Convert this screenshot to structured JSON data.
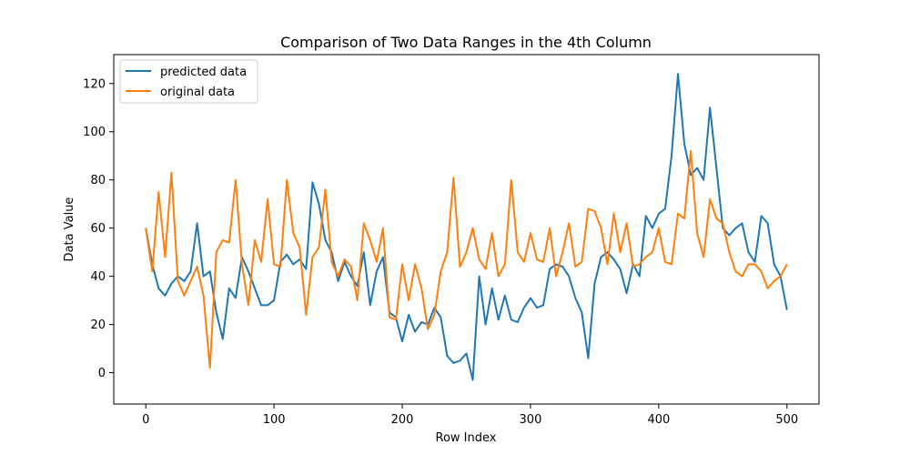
{
  "chart_data": {
    "type": "line",
    "title": "Comparison of Two Data Ranges in the 4th Column",
    "xlabel": "Row Index",
    "ylabel": "Data Value",
    "xlim": [
      -25,
      525
    ],
    "ylim": [
      -13,
      132
    ],
    "xticks": [
      0,
      100,
      200,
      300,
      400,
      500
    ],
    "yticks": [
      0,
      20,
      40,
      60,
      80,
      100,
      120
    ],
    "grid": false,
    "legend_position": "top-left",
    "series": [
      {
        "name": "predicted data",
        "color": "#1f77b4",
        "x": [
          0,
          5,
          10,
          15,
          20,
          25,
          30,
          35,
          40,
          45,
          50,
          55,
          60,
          65,
          70,
          75,
          80,
          85,
          90,
          95,
          100,
          105,
          110,
          115,
          120,
          125,
          130,
          135,
          140,
          145,
          150,
          155,
          160,
          165,
          170,
          175,
          180,
          185,
          190,
          195,
          200,
          205,
          210,
          215,
          220,
          225,
          230,
          235,
          240,
          245,
          250,
          255,
          260,
          265,
          270,
          275,
          280,
          285,
          290,
          295,
          300,
          305,
          310,
          315,
          320,
          325,
          330,
          335,
          340,
          345,
          350,
          355,
          360,
          365,
          370,
          375,
          380,
          385,
          390,
          395,
          400,
          405,
          410,
          415,
          420,
          425,
          430,
          435,
          440,
          445,
          450,
          455,
          460,
          465,
          470,
          475,
          480,
          485,
          490,
          495,
          500
        ],
        "y": [
          60,
          45,
          35,
          32,
          37,
          40,
          38,
          42,
          62,
          40,
          42,
          25,
          14,
          35,
          31,
          48,
          42,
          35,
          28,
          28,
          30,
          46,
          49,
          45,
          47,
          43,
          79,
          70,
          55,
          50,
          38,
          46,
          40,
          36,
          50,
          28,
          42,
          48,
          25,
          23,
          13,
          24,
          17,
          21,
          20,
          27,
          23,
          7,
          4,
          5,
          8,
          -3,
          40,
          20,
          35,
          22,
          32,
          22,
          21,
          27,
          31,
          27,
          28,
          43,
          45,
          44,
          40,
          31,
          25,
          6,
          37,
          48,
          50,
          47,
          43,
          33,
          45,
          40,
          65,
          60,
          66,
          68,
          90,
          124,
          95,
          82,
          85,
          80,
          110,
          85,
          60,
          57,
          60,
          62,
          50,
          46,
          65,
          62,
          45,
          40,
          26
        ]
      },
      {
        "name": "original data",
        "color": "#ff7f0e",
        "x": [
          0,
          5,
          10,
          15,
          20,
          25,
          30,
          35,
          40,
          45,
          50,
          55,
          60,
          65,
          70,
          75,
          80,
          85,
          90,
          95,
          100,
          105,
          110,
          115,
          120,
          125,
          130,
          135,
          140,
          145,
          150,
          155,
          160,
          165,
          170,
          175,
          180,
          185,
          190,
          195,
          200,
          205,
          210,
          215,
          220,
          225,
          230,
          235,
          240,
          245,
          250,
          255,
          260,
          265,
          270,
          275,
          280,
          285,
          290,
          295,
          300,
          305,
          310,
          315,
          320,
          325,
          330,
          335,
          340,
          345,
          350,
          355,
          360,
          365,
          370,
          375,
          380,
          385,
          390,
          395,
          400,
          405,
          410,
          415,
          420,
          425,
          430,
          435,
          440,
          445,
          450,
          455,
          460,
          465,
          470,
          475,
          480,
          485,
          490,
          495,
          500
        ],
        "y": [
          60,
          42,
          75,
          48,
          83,
          38,
          32,
          38,
          44,
          32,
          2,
          50,
          55,
          54,
          80,
          45,
          28,
          55,
          46,
          72,
          45,
          44,
          80,
          58,
          52,
          24,
          48,
          52,
          76,
          46,
          40,
          47,
          44,
          30,
          62,
          55,
          46,
          60,
          23,
          22,
          45,
          30,
          45,
          35,
          18,
          24,
          42,
          50,
          81,
          44,
          50,
          60,
          47,
          43,
          58,
          40,
          45,
          80,
          50,
          46,
          58,
          47,
          46,
          60,
          40,
          50,
          62,
          44,
          46,
          68,
          67,
          60,
          45,
          66,
          50,
          62,
          44,
          45,
          48,
          50,
          60,
          46,
          45,
          66,
          64,
          92,
          58,
          48,
          72,
          64,
          62,
          50,
          42,
          40,
          45,
          45,
          42,
          35,
          38,
          40,
          45
        ]
      }
    ]
  }
}
